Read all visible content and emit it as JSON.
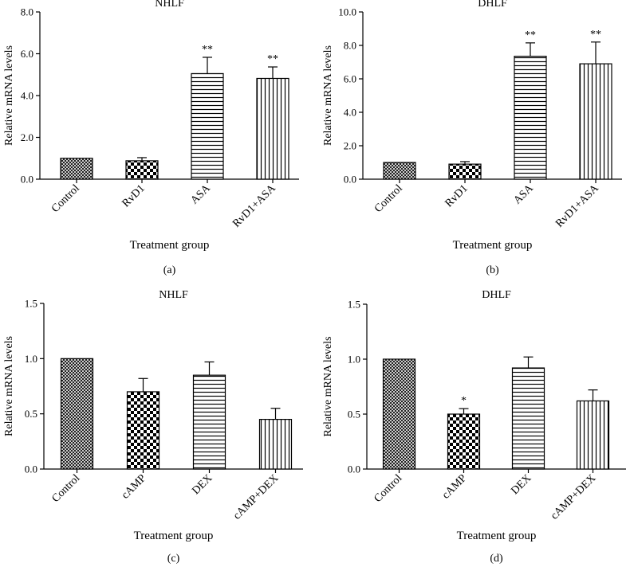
{
  "chart_data": [
    {
      "panel": "(a)",
      "type": "bar",
      "title": "NHLF",
      "xlabel": "Treatment group",
      "ylabel": "Relative mRNA levels",
      "ylim": [
        0,
        8
      ],
      "yticks": [
        "0.0",
        "2.0",
        "4.0",
        "6.0",
        "8.0"
      ],
      "ytick_values": [
        0,
        2,
        4,
        6,
        8
      ],
      "categories": [
        "Control",
        "RvD1",
        "ASA",
        "RvD1+ASA"
      ],
      "values": [
        1.0,
        0.88,
        5.05,
        4.82
      ],
      "errors": [
        0.0,
        0.15,
        0.78,
        0.55
      ],
      "significance": [
        "",
        "",
        "**",
        "**"
      ],
      "patterns": [
        "crosshatch",
        "checker",
        "hlines",
        "vlines"
      ]
    },
    {
      "panel": "(b)",
      "type": "bar",
      "title": "DHLF",
      "xlabel": "Treatment group",
      "ylabel": "Relative mRNA levels",
      "ylim": [
        0,
        10
      ],
      "yticks": [
        "0.0",
        "2.0",
        "4.0",
        "6.0",
        "8.0",
        "10.0"
      ],
      "ytick_values": [
        0,
        2,
        4,
        6,
        8,
        10
      ],
      "categories": [
        "Control",
        "RvD1",
        "ASA",
        "RvD1+ASA"
      ],
      "values": [
        1.0,
        0.9,
        7.35,
        6.9
      ],
      "errors": [
        0.0,
        0.15,
        0.8,
        1.3
      ],
      "significance": [
        "",
        "",
        "**",
        "**"
      ],
      "patterns": [
        "crosshatch",
        "checker",
        "hlines",
        "vlines"
      ]
    },
    {
      "panel": "(c)",
      "type": "bar",
      "title": "NHLF",
      "xlabel": "Treatment group",
      "ylabel": "Relative mRNA levels",
      "ylim": [
        0,
        1.5
      ],
      "yticks": [
        "0.0",
        "0.5",
        "1.0",
        "1.5"
      ],
      "ytick_values": [
        0,
        0.5,
        1.0,
        1.5
      ],
      "categories": [
        "Control",
        "cAMP",
        "DEX",
        "cAMP+DEX"
      ],
      "values": [
        1.0,
        0.7,
        0.85,
        0.45
      ],
      "errors": [
        0.0,
        0.12,
        0.12,
        0.1
      ],
      "significance": [
        "",
        "",
        "",
        ""
      ],
      "patterns": [
        "crosshatch",
        "checker",
        "hlines",
        "vlines"
      ]
    },
    {
      "panel": "(d)",
      "type": "bar",
      "title": "DHLF",
      "xlabel": "Treatment group",
      "ylabel": "Relative mRNA levels",
      "ylim": [
        0,
        1.5
      ],
      "yticks": [
        "0.0",
        "0.5",
        "1.0",
        "1.5"
      ],
      "ytick_values": [
        0,
        0.5,
        1.0,
        1.5
      ],
      "categories": [
        "Control",
        "cAMP",
        "DEX",
        "cAMP+DEX"
      ],
      "values": [
        1.0,
        0.5,
        0.92,
        0.62
      ],
      "errors": [
        0.0,
        0.05,
        0.1,
        0.1
      ],
      "significance": [
        "",
        "*",
        "",
        ""
      ],
      "patterns": [
        "crosshatch",
        "checker",
        "hlines",
        "vlines"
      ]
    }
  ],
  "colors": {
    "ink": "#000000",
    "background": "#ffffff"
  }
}
